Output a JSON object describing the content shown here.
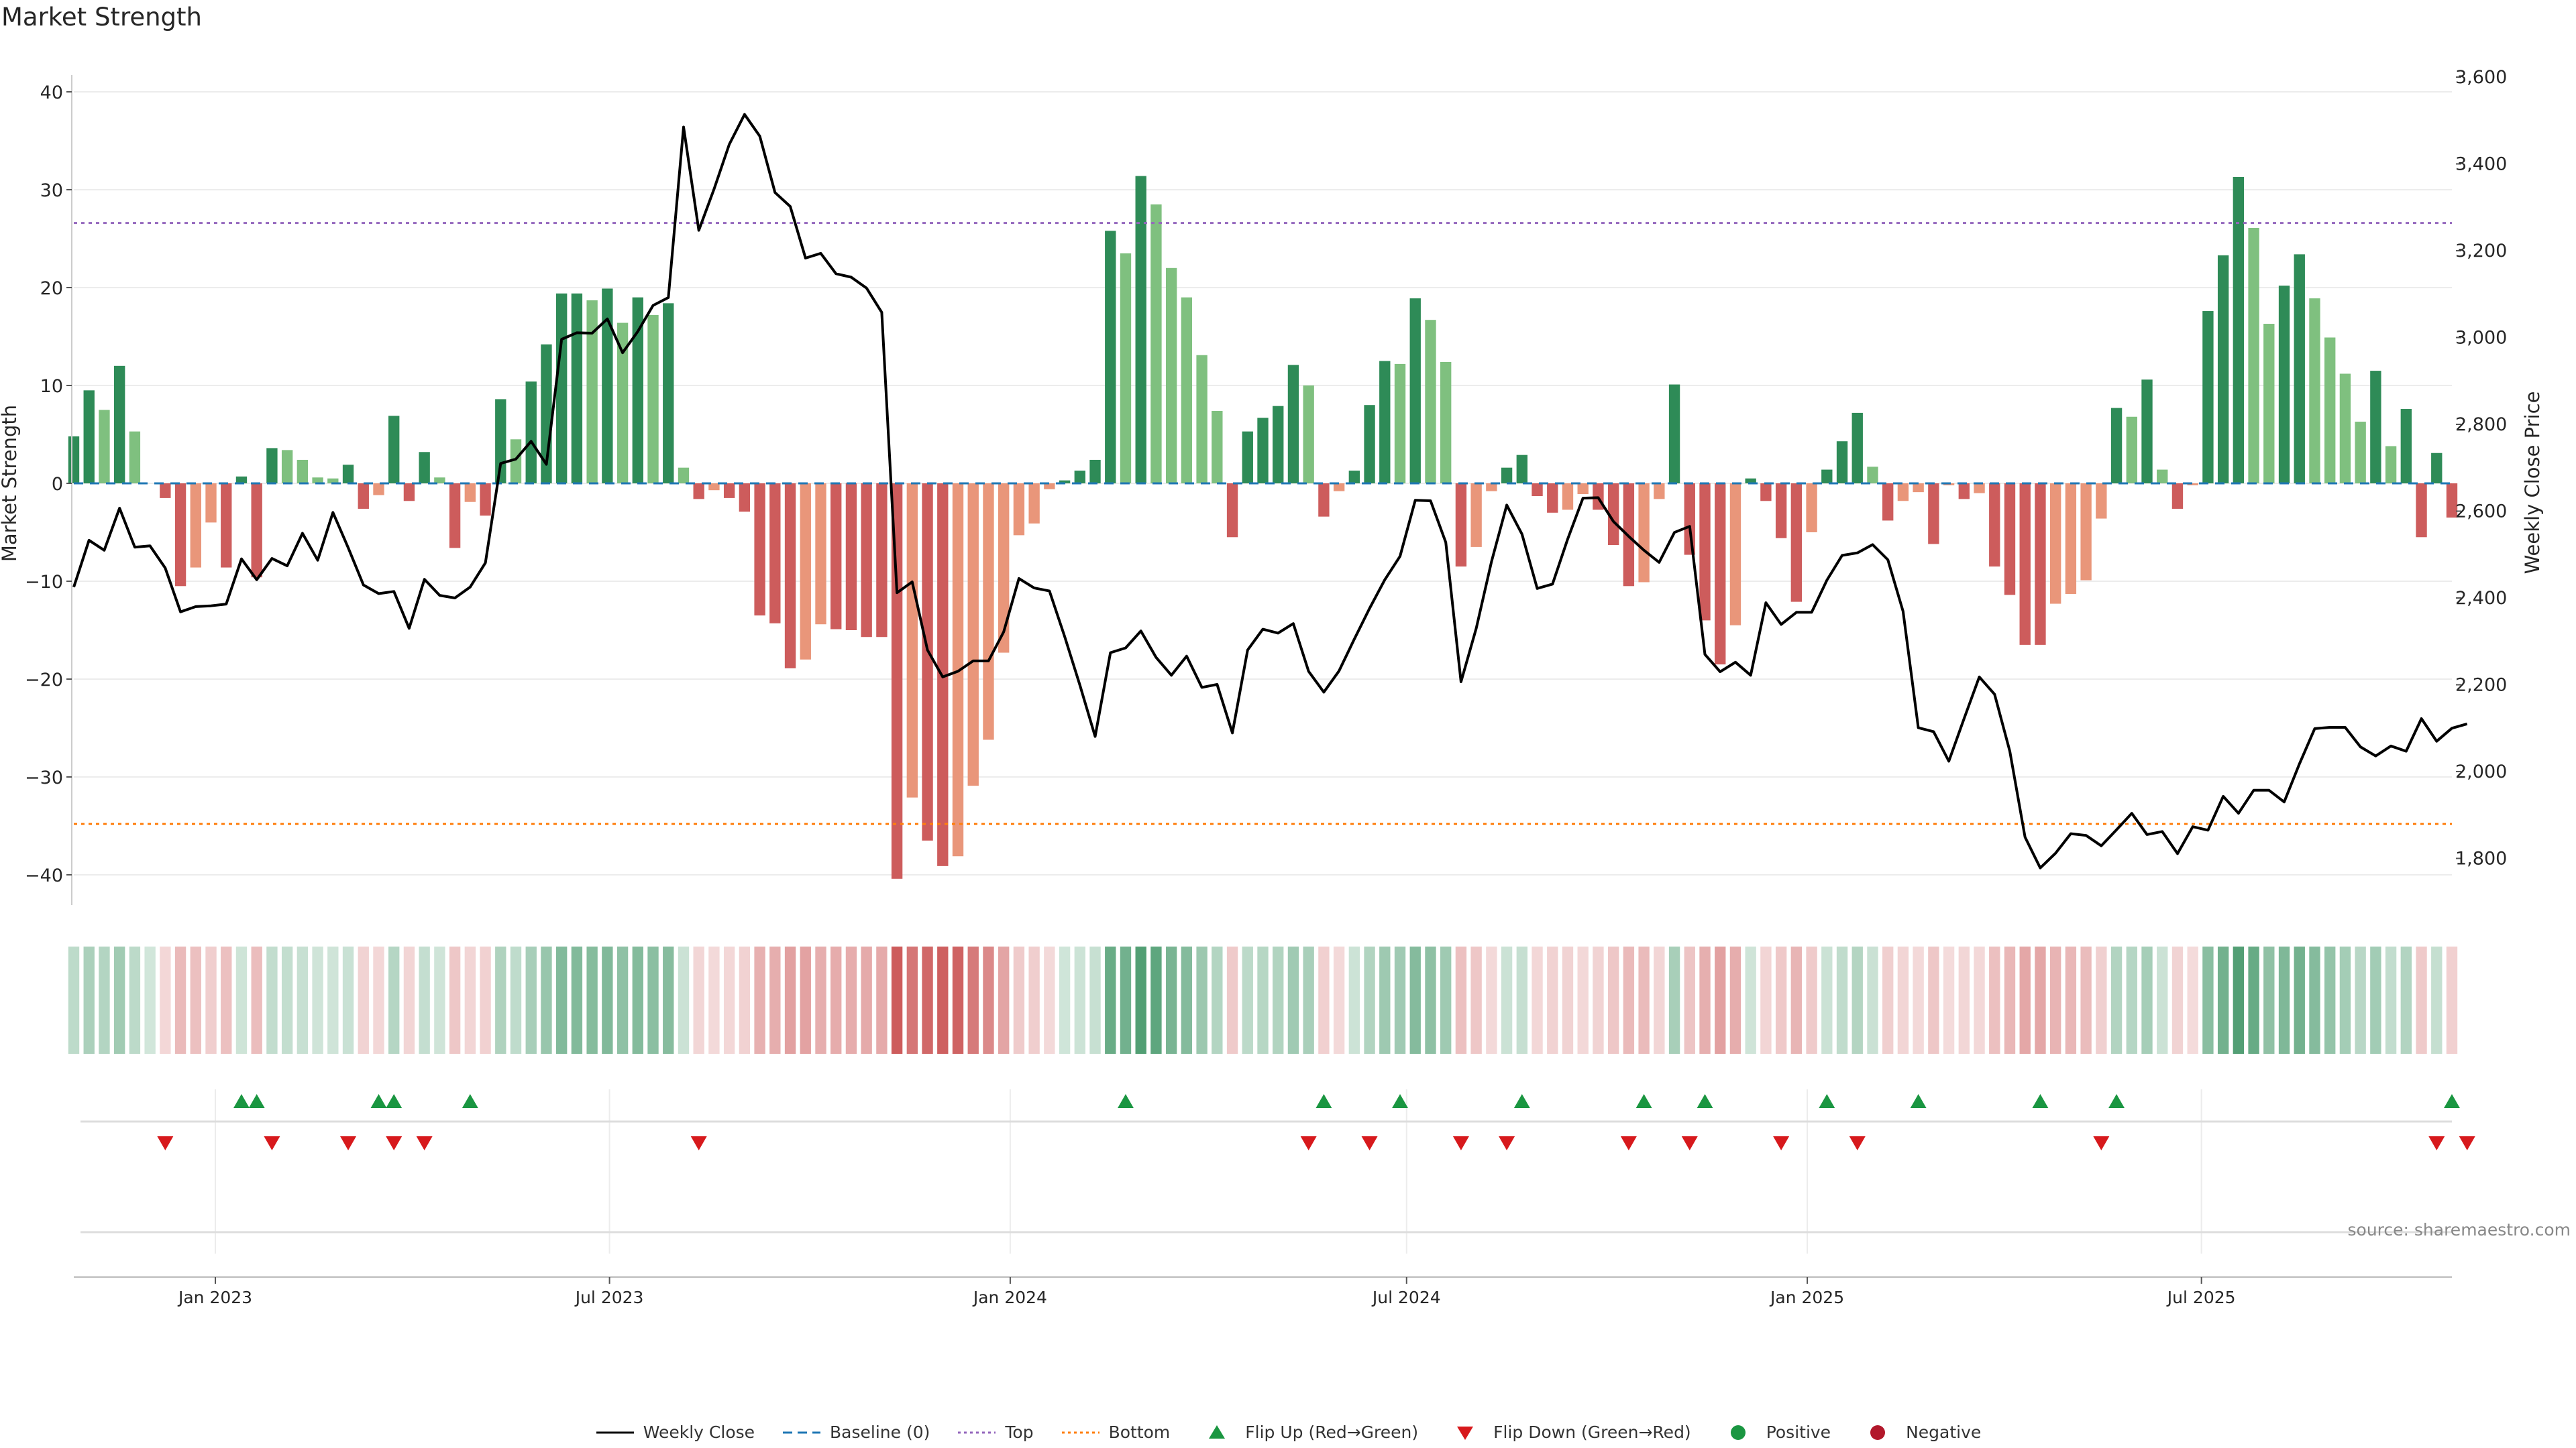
{
  "title": "Market Strength",
  "source": "source: sharemaestro.com",
  "colors": {
    "strong_green": "#2e8b57",
    "light_green": "#7fc07f",
    "strong_red": "#cd5c5c",
    "light_red": "#e9967a",
    "close_line": "#000000",
    "baseline": "#1f77b4",
    "top_line": "#9467bd",
    "bottom_line": "#ff7f0e",
    "flip_up": "#1a9641",
    "flip_down": "#d7191c",
    "positive": "#1a9641",
    "negative": "#b2182b"
  },
  "chart_data": {
    "type": "bar",
    "x_start": "2022-10-28",
    "x_step_days": 7,
    "ylabel": "Market Strength",
    "ylim": [
      -43,
      40
    ],
    "y2label": "Weekly Close Price",
    "y2lim": [
      1720,
      3600
    ],
    "yticks": [
      "40",
      "30",
      "20",
      "10",
      "0",
      "−10",
      "−20",
      "−30",
      "−40"
    ],
    "y2ticks": [
      "3,600",
      "3,400",
      "3,200",
      "3,000",
      "2,800",
      "2,600",
      "2,400",
      "2,200",
      "2,000",
      "1,800"
    ],
    "xticks": [
      "Jan 2023",
      "Jul 2023",
      "Jan 2024",
      "Jul 2024",
      "Jan 2025",
      "Jul 2025"
    ],
    "xtick_dates": [
      "2023-01-01",
      "2023-07-01",
      "2024-01-01",
      "2024-07-01",
      "2025-01-01",
      "2025-07-01"
    ],
    "top_threshold": 26.6,
    "bottom_threshold": -34.8,
    "strength": [
      4.8,
      9.5,
      7.5,
      12.0,
      5.3,
      0,
      -1.5,
      -10.5,
      -8.6,
      -4.0,
      -8.6,
      0.7,
      -9.6,
      3.6,
      3.4,
      2.4,
      0.6,
      0.5,
      1.9,
      -2.6,
      -1.2,
      6.9,
      -1.8,
      3.2,
      0.6,
      -6.6,
      -1.9,
      -3.3,
      8.6,
      4.5,
      10.4,
      14.2,
      19.4,
      19.4,
      18.7,
      19.9,
      16.4,
      19.0,
      17.2,
      18.4,
      1.6,
      -1.6,
      -0.7,
      -1.5,
      -2.9,
      -13.5,
      -14.3,
      -18.9,
      -18.0,
      -14.4,
      -14.9,
      -15.0,
      -15.7,
      -15.7,
      -40.4,
      -32.1,
      -36.5,
      -39.1,
      -38.1,
      -30.9,
      -26.2,
      -17.3,
      -5.3,
      -4.1,
      -0.6,
      0.3,
      1.3,
      2.4,
      25.8,
      23.5,
      31.4,
      28.5,
      22.0,
      19.0,
      13.1,
      7.4,
      -5.5,
      5.3,
      6.7,
      7.9,
      12.1,
      10.0,
      -3.4,
      -0.8,
      1.3,
      8.0,
      12.5,
      12.2,
      18.9,
      16.7,
      12.4,
      -8.5,
      -6.5,
      -0.8,
      1.6,
      2.9,
      -1.3,
      -3.0,
      -2.7,
      -1.1,
      -2.7,
      -6.3,
      -10.5,
      -10.1,
      -1.6,
      10.1,
      -7.3,
      -14.0,
      -18.5,
      -14.5,
      0.5,
      -1.8,
      -5.6,
      -12.1,
      -5.0,
      1.4,
      4.3,
      7.2,
      1.7,
      -3.8,
      -1.8,
      -0.9,
      -6.2,
      -0.2,
      -1.6,
      -1.0,
      -8.5,
      -11.4,
      -16.5,
      -16.5,
      -12.3,
      -11.3,
      -9.9,
      -3.6,
      7.7,
      6.8,
      10.6,
      1.4,
      -2.6,
      -0.2,
      17.6,
      23.3,
      31.3,
      26.1,
      16.3,
      20.2,
      23.4,
      18.9,
      14.9,
      11.2,
      6.3,
      11.5,
      3.8,
      7.6,
      -5.5,
      3.1,
      -3.5
    ],
    "close": [
      2425,
      2533,
      2510,
      2607,
      2517,
      2520,
      2469,
      2368,
      2380,
      2382,
      2386,
      2490,
      2442,
      2491,
      2474,
      2549,
      2487,
      2597,
      2516,
      2430,
      2410,
      2415,
      2330,
      2443,
      2406,
      2400,
      2425,
      2481,
      2710,
      2720,
      2761,
      2708,
      2996,
      3011,
      3010,
      3043,
      2965,
      3014,
      3074,
      3092,
      3485,
      3247,
      3342,
      3445,
      3514,
      3464,
      3334,
      3302,
      3183,
      3194,
      3147,
      3139,
      3114,
      3058,
      2412,
      2437,
      2280,
      2218,
      2231,
      2255,
      2255,
      2322,
      2445,
      2423,
      2416,
      2311,
      2199,
      2081,
      2274,
      2285,
      2324,
      2263,
      2222,
      2266,
      2194,
      2201,
      2089,
      2280,
      2328,
      2319,
      2341,
      2231,
      2183,
      2232,
      2305,
      2376,
      2442,
      2496,
      2625,
      2624,
      2528,
      2207,
      2330,
      2484,
      2614,
      2547,
      2422,
      2432,
      2536,
      2630,
      2631,
      2576,
      2542,
      2510,
      2482,
      2551,
      2565,
      2270,
      2230,
      2252,
      2222,
      2389,
      2339,
      2367,
      2367,
      2441,
      2498,
      2504,
      2523,
      2488,
      2369,
      2101,
      2092,
      2024,
      2122,
      2218,
      2178,
      2047,
      1849,
      1778,
      1812,
      1857,
      1853,
      1829,
      1866,
      1904,
      1855,
      1862,
      1811,
      1873,
      1865,
      1943,
      1904,
      1957,
      1957,
      1930,
      2018,
      2099,
      2102,
      2102,
      2057,
      2036,
      2059,
      2047,
      2122,
      2070,
      2100,
      2110
    ],
    "flip_up": [
      "2023-01-13",
      "2023-01-20",
      "2023-03-17",
      "2023-03-24",
      "2023-04-28",
      "2024-02-23",
      "2024-05-24",
      "2024-06-28",
      "2024-08-23",
      "2024-10-18",
      "2024-11-15",
      "2025-01-10",
      "2025-02-21",
      "2025-04-18",
      "2025-05-23",
      "2025-10-24"
    ],
    "flip_down": [
      "2022-12-09",
      "2023-01-27",
      "2023-03-03",
      "2023-03-24",
      "2023-04-07",
      "2023-08-11",
      "2024-05-17",
      "2024-06-14",
      "2024-07-26",
      "2024-08-16",
      "2024-10-11",
      "2024-11-08",
      "2024-12-20",
      "2025-01-24",
      "2025-05-16",
      "2025-10-17",
      "2025-10-31"
    ],
    "legend": [
      {
        "label": "Weekly Close",
        "kind": "line"
      },
      {
        "label": "Baseline (0)",
        "kind": "dash"
      },
      {
        "label": "Top",
        "kind": "dot-top"
      },
      {
        "label": "Bottom",
        "kind": "dot-bottom"
      },
      {
        "label": "Flip Up (Red→Green)",
        "kind": "tri-up"
      },
      {
        "label": "Flip Down (Green→Red)",
        "kind": "tri-down"
      },
      {
        "label": "Positive",
        "kind": "circle-pos"
      },
      {
        "label": "Negative",
        "kind": "circle-neg"
      }
    ]
  }
}
